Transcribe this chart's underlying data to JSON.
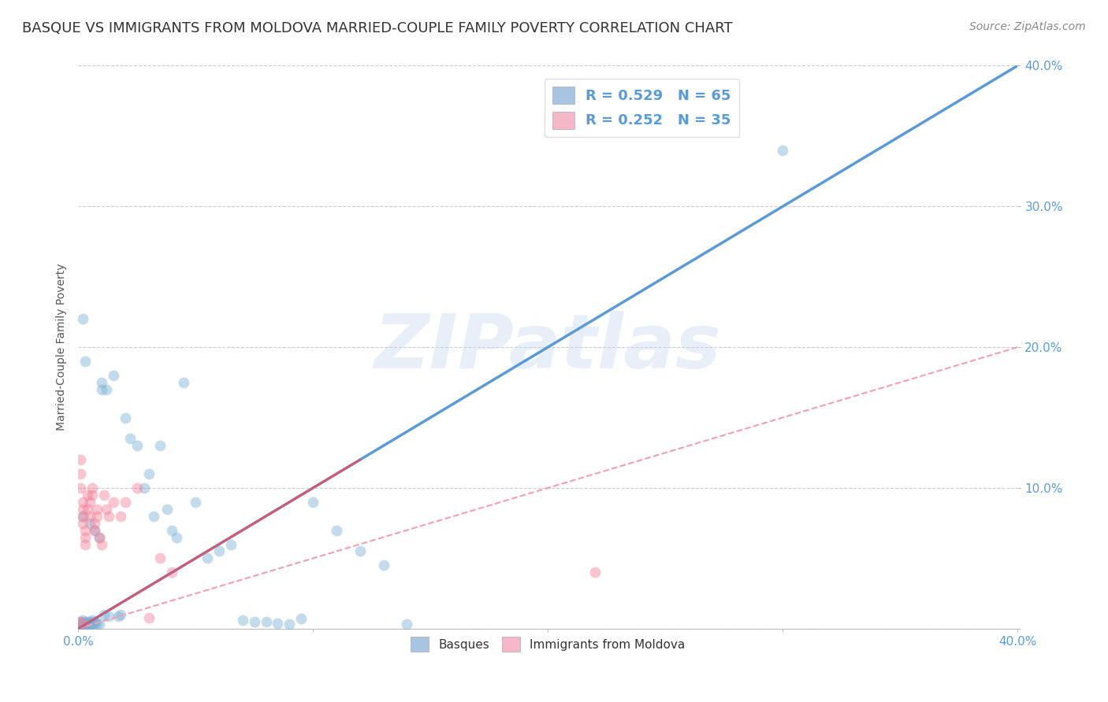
{
  "title": "BASQUE VS IMMIGRANTS FROM MOLDOVA MARRIED-COUPLE FAMILY POVERTY CORRELATION CHART",
  "source": "Source: ZipAtlas.com",
  "ylabel": "Married-Couple Family Poverty",
  "xlim": [
    0.0,
    0.4
  ],
  "ylim": [
    0.0,
    0.4
  ],
  "xticks": [
    0.0,
    0.1,
    0.2,
    0.3,
    0.4
  ],
  "yticks": [
    0.0,
    0.1,
    0.2,
    0.3,
    0.4
  ],
  "legend1_label": "R = 0.529   N = 65",
  "legend2_label": "R = 0.252   N = 35",
  "legend1_color": "#a8c4e0",
  "legend2_color": "#f4b8c8",
  "title_fontsize": 13,
  "source_fontsize": 10,
  "watermark": "ZIPatlas",
  "blue_scatter_x": [
    0.001,
    0.001,
    0.001,
    0.002,
    0.002,
    0.002,
    0.002,
    0.003,
    0.003,
    0.003,
    0.003,
    0.004,
    0.004,
    0.004,
    0.005,
    0.005,
    0.005,
    0.005,
    0.006,
    0.006,
    0.007,
    0.007,
    0.008,
    0.009,
    0.01,
    0.01,
    0.011,
    0.012,
    0.013,
    0.015,
    0.017,
    0.018,
    0.02,
    0.022,
    0.025,
    0.028,
    0.03,
    0.032,
    0.035,
    0.038,
    0.04,
    0.042,
    0.045,
    0.05,
    0.055,
    0.06,
    0.065,
    0.07,
    0.075,
    0.08,
    0.085,
    0.09,
    0.095,
    0.1,
    0.11,
    0.12,
    0.13,
    0.14,
    0.002,
    0.003,
    0.3,
    0.002,
    0.005,
    0.007,
    0.009
  ],
  "blue_scatter_y": [
    0.005,
    0.003,
    0.004,
    0.002,
    0.006,
    0.003,
    0.004,
    0.003,
    0.004,
    0.005,
    0.002,
    0.003,
    0.005,
    0.004,
    0.003,
    0.005,
    0.002,
    0.004,
    0.003,
    0.006,
    0.004,
    0.005,
    0.004,
    0.003,
    0.17,
    0.175,
    0.01,
    0.17,
    0.009,
    0.18,
    0.009,
    0.01,
    0.15,
    0.135,
    0.13,
    0.1,
    0.11,
    0.08,
    0.13,
    0.085,
    0.07,
    0.065,
    0.175,
    0.09,
    0.05,
    0.055,
    0.06,
    0.006,
    0.005,
    0.005,
    0.004,
    0.003,
    0.007,
    0.09,
    0.07,
    0.055,
    0.045,
    0.003,
    0.22,
    0.19,
    0.34,
    0.08,
    0.075,
    0.07,
    0.065
  ],
  "pink_scatter_x": [
    0.001,
    0.001,
    0.001,
    0.002,
    0.002,
    0.002,
    0.002,
    0.003,
    0.003,
    0.003,
    0.004,
    0.004,
    0.005,
    0.005,
    0.006,
    0.006,
    0.007,
    0.007,
    0.008,
    0.008,
    0.009,
    0.01,
    0.011,
    0.012,
    0.013,
    0.015,
    0.018,
    0.02,
    0.025,
    0.03,
    0.035,
    0.04,
    0.001,
    0.002,
    0.22
  ],
  "pink_scatter_y": [
    0.12,
    0.11,
    0.1,
    0.09,
    0.08,
    0.085,
    0.075,
    0.07,
    0.065,
    0.06,
    0.095,
    0.085,
    0.08,
    0.09,
    0.095,
    0.1,
    0.075,
    0.07,
    0.08,
    0.085,
    0.065,
    0.06,
    0.095,
    0.085,
    0.08,
    0.09,
    0.08,
    0.09,
    0.1,
    0.008,
    0.05,
    0.04,
    0.005,
    0.003,
    0.04
  ],
  "blue_line_x": [
    0.0,
    0.4
  ],
  "blue_line_y": [
    0.0,
    0.4
  ],
  "pink_solid_line_x": [
    0.0,
    0.12
  ],
  "pink_solid_line_y": [
    0.0,
    0.12
  ],
  "pink_dash_line_x": [
    0.0,
    0.4
  ],
  "pink_dash_line_y": [
    0.0,
    0.2
  ],
  "scatter_alpha": 0.45,
  "scatter_size": 100,
  "blue_scatter_color": "#7ab0d4",
  "pink_scatter_color": "#f08098",
  "blue_line_color": "#5b9bd5",
  "pink_solid_color": "#d45870",
  "pink_dash_color": "#f0a0b0",
  "grid_color": "#cccccc",
  "bg_color": "#ffffff",
  "tick_color": "#5b9bd5",
  "title_color": "#333333"
}
